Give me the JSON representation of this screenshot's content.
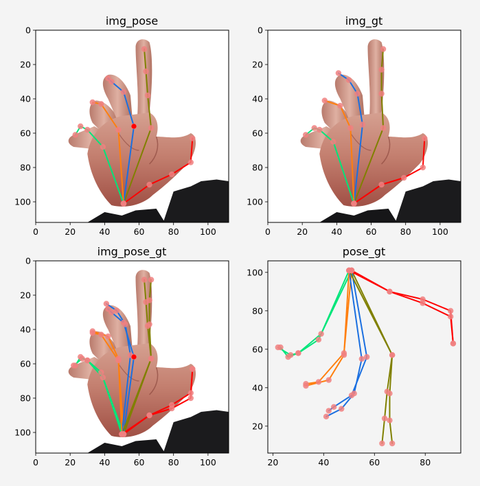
{
  "figure": {
    "background": "#f4f4f4"
  },
  "colors": {
    "thumb": "#ff0000",
    "index": "#808000",
    "middle": "#1a6fe0",
    "ring": "#ff7f0e",
    "pinky": "#00e57a",
    "keypoint": "#f08080",
    "keypoint_highlight": "#ff0000"
  },
  "chart_data": [
    {
      "type": "scatter",
      "title": "img_pose",
      "image_axes": true,
      "xlim": [
        0,
        112
      ],
      "ylim": [
        112,
        0
      ],
      "xticks": [
        0,
        20,
        40,
        60,
        80,
        100
      ],
      "yticks": [
        0,
        20,
        40,
        60,
        80,
        100
      ],
      "xtick_labels": [
        "0",
        "20",
        "40",
        "60",
        "80",
        "100"
      ],
      "ytick_labels": [
        "0",
        "20",
        "40",
        "60",
        "80",
        "100"
      ],
      "series": [
        {
          "points": [
            [
              51,
              101
            ],
            [
              66,
              90
            ],
            [
              79,
              84
            ],
            [
              90,
              77
            ],
            [
              91,
              63
            ]
          ]
        },
        {
          "points": [
            [
              51,
              101
            ],
            [
              67,
              57
            ],
            [
              65,
              38
            ],
            [
              64,
              24
            ],
            [
              63,
              11
            ]
          ]
        },
        {
          "points": [
            [
              51,
              101
            ],
            [
              57,
              56
            ],
            [
              51,
              36
            ],
            [
              44,
              30
            ],
            [
              42,
              28
            ]
          ]
        },
        {
          "points": [
            [
              51,
              101
            ],
            [
              48,
              58
            ],
            [
              38,
              43
            ],
            [
              33,
              42
            ]
          ]
        },
        {
          "points": [
            [
              51,
              101
            ],
            [
              39,
              68
            ],
            [
              30,
              58
            ],
            [
              26,
              56
            ],
            [
              23,
              61
            ]
          ]
        }
      ]
    },
    {
      "type": "scatter",
      "title": "img_gt",
      "image_axes": true,
      "xlim": [
        0,
        112
      ],
      "ylim": [
        112,
        0
      ],
      "xticks": [
        0,
        20,
        40,
        60,
        80,
        100
      ],
      "yticks": [
        0,
        20,
        40,
        60,
        80,
        100
      ],
      "xtick_labels": [
        "0",
        "20",
        "40",
        "60",
        "80",
        "100"
      ],
      "ytick_labels": [
        "0",
        "20",
        "40",
        "60",
        "80",
        "100"
      ],
      "series": [
        {
          "points": [
            [
              50,
              101
            ],
            [
              66,
              90
            ],
            [
              79,
              86
            ],
            [
              90,
              80
            ],
            [
              91,
              63
            ]
          ]
        },
        {
          "points": [
            [
              50,
              101
            ],
            [
              67,
              57
            ],
            [
              66,
              37
            ],
            [
              66,
              23
            ],
            [
              67,
              11
            ]
          ]
        },
        {
          "points": [
            [
              50,
              101
            ],
            [
              55,
              55
            ],
            [
              52,
              37
            ],
            [
              47,
              29
            ],
            [
              41,
              25
            ]
          ]
        },
        {
          "points": [
            [
              50,
              101
            ],
            [
              48,
              57
            ],
            [
              42,
              44
            ],
            [
              33,
              41
            ]
          ]
        },
        {
          "points": [
            [
              50,
              101
            ],
            [
              38,
              65
            ],
            [
              30,
              58
            ],
            [
              27,
              57
            ],
            [
              22,
              61
            ]
          ]
        }
      ]
    },
    {
      "type": "scatter",
      "title": "img_pose_gt",
      "image_axes": true,
      "xlim": [
        0,
        112
      ],
      "ylim": [
        112,
        0
      ],
      "xticks": [
        0,
        20,
        40,
        60,
        80,
        100
      ],
      "yticks": [
        0,
        20,
        40,
        60,
        80,
        100
      ],
      "xtick_labels": [
        "0",
        "20",
        "40",
        "60",
        "80",
        "100"
      ],
      "ytick_labels": [
        "0",
        "20",
        "40",
        "60",
        "80",
        "100"
      ],
      "series": [
        {
          "points": [
            [
              51,
              101
            ],
            [
              66,
              90
            ],
            [
              79,
              84
            ],
            [
              90,
              77
            ],
            [
              91,
              63
            ]
          ]
        },
        {
          "points": [
            [
              51,
              101
            ],
            [
              67,
              57
            ],
            [
              65,
              38
            ],
            [
              64,
              24
            ],
            [
              63,
              11
            ]
          ]
        },
        {
          "points": [
            [
              51,
              101
            ],
            [
              57,
              56
            ],
            [
              51,
              36
            ],
            [
              44,
              30
            ],
            [
              42,
              28
            ]
          ]
        },
        {
          "points": [
            [
              51,
              101
            ],
            [
              48,
              58
            ],
            [
              38,
              43
            ],
            [
              33,
              42
            ]
          ]
        },
        {
          "points": [
            [
              51,
              101
            ],
            [
              39,
              68
            ],
            [
              30,
              58
            ],
            [
              26,
              56
            ],
            [
              23,
              61
            ]
          ]
        },
        {
          "points": [
            [
              50,
              101
            ],
            [
              66,
              90
            ],
            [
              79,
              86
            ],
            [
              90,
              80
            ],
            [
              91,
              63
            ]
          ]
        },
        {
          "points": [
            [
              50,
              101
            ],
            [
              67,
              57
            ],
            [
              66,
              37
            ],
            [
              66,
              23
            ],
            [
              67,
              11
            ]
          ]
        },
        {
          "points": [
            [
              50,
              101
            ],
            [
              55,
              55
            ],
            [
              52,
              37
            ],
            [
              47,
              29
            ],
            [
              41,
              25
            ]
          ]
        },
        {
          "points": [
            [
              50,
              101
            ],
            [
              48,
              57
            ],
            [
              42,
              44
            ],
            [
              33,
              41
            ]
          ]
        },
        {
          "points": [
            [
              50,
              101
            ],
            [
              38,
              65
            ],
            [
              30,
              58
            ],
            [
              27,
              57
            ],
            [
              22,
              61
            ]
          ]
        }
      ]
    },
    {
      "type": "line",
      "title": "pose_gt",
      "image_axes": false,
      "xlim": [
        18,
        94
      ],
      "ylim": [
        6,
        106
      ],
      "xticks": [
        20,
        40,
        60,
        80
      ],
      "yticks": [
        20,
        40,
        60,
        80,
        100
      ],
      "xtick_labels": [
        "20",
        "40",
        "60",
        "80"
      ],
      "ytick_labels": [
        "20",
        "40",
        "60",
        "80",
        "100"
      ],
      "series": [
        {
          "points": [
            [
              51,
              101
            ],
            [
              66,
              90
            ],
            [
              79,
              84
            ],
            [
              90,
              77
            ],
            [
              91,
              63
            ]
          ]
        },
        {
          "points": [
            [
              51,
              101
            ],
            [
              67,
              57
            ],
            [
              65,
              38
            ],
            [
              64,
              24
            ],
            [
              63,
              11
            ]
          ]
        },
        {
          "points": [
            [
              51,
              101
            ],
            [
              57,
              56
            ],
            [
              51,
              36
            ],
            [
              44,
              30
            ],
            [
              42,
              28
            ]
          ]
        },
        {
          "points": [
            [
              51,
              101
            ],
            [
              48,
              58
            ],
            [
              38,
              43
            ],
            [
              33,
              42
            ]
          ]
        },
        {
          "points": [
            [
              51,
              101
            ],
            [
              39,
              68
            ],
            [
              30,
              58
            ],
            [
              26,
              56
            ],
            [
              23,
              61
            ]
          ]
        },
        {
          "points": [
            [
              50,
              101
            ],
            [
              66,
              90
            ],
            [
              79,
              86
            ],
            [
              90,
              80
            ],
            [
              91,
              63
            ]
          ]
        },
        {
          "points": [
            [
              50,
              101
            ],
            [
              67,
              57
            ],
            [
              66,
              37
            ],
            [
              66,
              23
            ],
            [
              67,
              11
            ]
          ]
        },
        {
          "points": [
            [
              50,
              101
            ],
            [
              55,
              55
            ],
            [
              52,
              37
            ],
            [
              47,
              29
            ],
            [
              41,
              25
            ]
          ]
        },
        {
          "points": [
            [
              50,
              101
            ],
            [
              48,
              57
            ],
            [
              42,
              44
            ],
            [
              33,
              41
            ]
          ]
        },
        {
          "points": [
            [
              50,
              101
            ],
            [
              38,
              65
            ],
            [
              30,
              58
            ],
            [
              27,
              57
            ],
            [
              22,
              61
            ]
          ]
        }
      ]
    }
  ]
}
